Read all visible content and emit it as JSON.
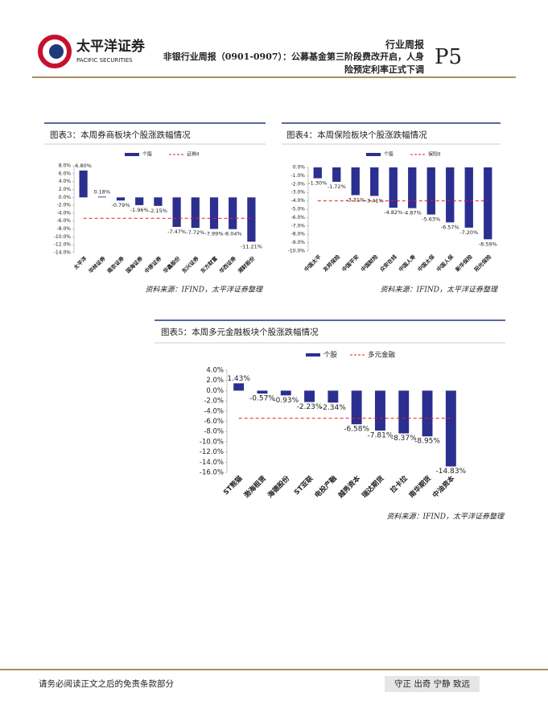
{
  "header": {
    "brand": "太平洋证券",
    "brand_en": "PACIFIC SECURITIES",
    "category": "行业周报",
    "title_line1": "非银行业周报（0901-0907）：公募基金第三阶段费改开启，人身",
    "title_line2": "险预定利率正式下调",
    "page": "P5"
  },
  "chart_data": [
    {
      "type": "bar",
      "title": "图表3：本周券商板块个股涨跌幅情况",
      "source": "资料来源：IFIND，太平洋证券整理",
      "categories": [
        "太平洋",
        "华林证券",
        "南京证券",
        "国海证券",
        "中原证券",
        "华鑫股份",
        "东兴证券",
        "东方财富",
        "华西证券",
        "湘财股份"
      ],
      "series": [
        {
          "name": "个股",
          "color": "#2b2f8f",
          "values": [
            6.8,
            0.18,
            -0.79,
            -1.96,
            -2.15,
            -7.47,
            -7.72,
            -7.99,
            -8.04,
            -11.21
          ],
          "value_labels": [
            "6.80%",
            "0.18%",
            "-0.79%",
            "-1.96%",
            "-2.15%",
            "-7.47%",
            "-7.72%",
            "-7.99%",
            "-8.04%",
            "-11.21%"
          ]
        },
        {
          "name": "证券II",
          "color": "#e02020",
          "values": [
            -5.3,
            -5.3,
            -5.3,
            -5.3,
            -5.3,
            -5.3,
            -5.3,
            -5.3,
            -5.3,
            -5.3
          ]
        }
      ],
      "ylim": [
        -14,
        8
      ],
      "yticks": [
        {
          "value": 8,
          "label": "8.0%"
        },
        {
          "value": 6,
          "label": "6.0%"
        },
        {
          "value": 4,
          "label": "4.0%"
        },
        {
          "value": 2,
          "label": "2.0%"
        },
        {
          "value": 0,
          "label": "0.0%"
        },
        {
          "value": -2,
          "label": "-2.0%"
        },
        {
          "value": -4,
          "label": "-4.0%"
        },
        {
          "value": -6,
          "label": "-6.0%"
        },
        {
          "value": -8,
          "label": "-8.0%"
        },
        {
          "value": -10,
          "label": "-10.0%"
        },
        {
          "value": -12,
          "label": "-12.0%"
        },
        {
          "value": -14,
          "label": "-14.0%"
        }
      ]
    },
    {
      "type": "bar",
      "title": "图表4：本周保险板块个股涨跌幅情况",
      "source": "资料来源：IFIND，太平洋证券整理",
      "categories": [
        "中国太平",
        "友邦保险",
        "中国平安",
        "中国财险",
        "众安在线",
        "中国人寿",
        "中国太保",
        "中国人保",
        "新华保险",
        "阳光保险"
      ],
      "series": [
        {
          "name": "个股",
          "color": "#2b2f8f",
          "values": [
            -1.3,
            -1.72,
            -3.31,
            -3.41,
            -4.82,
            -4.87,
            -5.63,
            -6.57,
            -7.2,
            -8.59
          ],
          "value_labels": [
            "-1.30%",
            "-1.72%",
            "-3.31%",
            "-3.41%",
            "-4.82%",
            "-4.87%",
            "-5.63%",
            "-6.57%",
            "-7.20%",
            "-8.59%"
          ]
        },
        {
          "name": "保险II",
          "color": "#e02020",
          "values": [
            -4.0,
            -4.0,
            -4.0,
            -4.0,
            -4.0,
            -4.0,
            -4.0,
            -4.0,
            -4.0,
            -4.0
          ]
        }
      ],
      "ylim": [
        -10,
        0
      ],
      "yticks": [
        {
          "value": 0,
          "label": "0.0%"
        },
        {
          "value": -1,
          "label": "-1.0%"
        },
        {
          "value": -2,
          "label": "-2.0%"
        },
        {
          "value": -3,
          "label": "-3.0%"
        },
        {
          "value": -4,
          "label": "-4.0%"
        },
        {
          "value": -5,
          "label": "-5.0%"
        },
        {
          "value": -6,
          "label": "-6.0%"
        },
        {
          "value": -7,
          "label": "-7.0%"
        },
        {
          "value": -8,
          "label": "-8.0%"
        },
        {
          "value": -9,
          "label": "-9.0%"
        },
        {
          "value": -10,
          "label": "-10.0%"
        }
      ]
    },
    {
      "type": "bar",
      "title": "图表5：本周多元金融板块个股涨跌幅情况",
      "source": "资料来源：IFIND，太平洋证券整理",
      "categories": [
        "ST熊猫",
        "渤海租赁",
        "海德股份",
        "ST亚联",
        "电投产融",
        "越秀资本",
        "瑞达期货",
        "拉卡拉",
        "南华期货",
        "中油资本"
      ],
      "series": [
        {
          "name": "个股",
          "color": "#2b2f8f",
          "values": [
            1.43,
            -0.57,
            -0.93,
            -2.23,
            -2.34,
            -6.58,
            -7.81,
            -8.37,
            -8.95,
            -14.83
          ],
          "value_labels": [
            "1.43%",
            "-0.57%",
            "-0.93%",
            "-2.23%",
            "-2.34%",
            "-6.58%",
            "-7.81%",
            "-8.37%",
            "-8.95%",
            "-14.83%"
          ]
        },
        {
          "name": "多元金融",
          "color": "#e02020",
          "values": [
            -5.4,
            -5.4,
            -5.4,
            -5.4,
            -5.4,
            -5.4,
            -5.4,
            -5.4,
            -5.4,
            -5.4
          ]
        }
      ],
      "ylim": [
        -16,
        4
      ],
      "yticks": [
        {
          "value": 4,
          "label": "4.0%"
        },
        {
          "value": 2,
          "label": "2.0%"
        },
        {
          "value": 0,
          "label": "0.0%"
        },
        {
          "value": -2,
          "label": "-2.0%"
        },
        {
          "value": -4,
          "label": "-4.0%"
        },
        {
          "value": -6,
          "label": "-6.0%"
        },
        {
          "value": -8,
          "label": "-8.0%"
        },
        {
          "value": -10,
          "label": "-10.0%"
        },
        {
          "value": -12,
          "label": "-12.0%"
        },
        {
          "value": -14,
          "label": "-14.0%"
        },
        {
          "value": -16,
          "label": "-16.0%"
        }
      ]
    }
  ],
  "footer": {
    "disclaimer": "请务必阅读正文之后的免责条款部分",
    "motto": "守正 出奇 宁静 致远"
  }
}
